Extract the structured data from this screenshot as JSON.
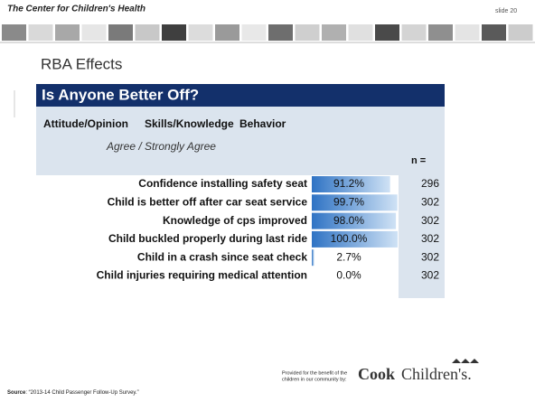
{
  "header": {
    "org": "The Center for Children's Health",
    "slide": "slide 20"
  },
  "title": "RBA Effects",
  "panel": {
    "heading": "Is Anyone Better Off?",
    "tabs": [
      "Attitude/Opinion",
      "Skills/Knowledge",
      "Behavior"
    ],
    "subheading": "Agree / Strongly Agree",
    "n_header": "n ="
  },
  "table": {
    "xlim": [
      0,
      100
    ],
    "rows": [
      {
        "label": "Confidence installing safety seat",
        "value": 91.2,
        "value_label": "91.2%",
        "n": 296
      },
      {
        "label": "Child is better off after car seat service",
        "value": 99.7,
        "value_label": "99.7%",
        "n": 302
      },
      {
        "label": "Knowledge of cps improved",
        "value": 98.0,
        "value_label": "98.0%",
        "n": 302
      },
      {
        "label": "Child buckled properly during last ride",
        "value": 100.0,
        "value_label": "100.0%",
        "n": 302
      },
      {
        "label": "Child in a crash since seat check",
        "value": 2.7,
        "value_label": "2.7%",
        "n": 302
      },
      {
        "label": "Child injuries requiring medical attention",
        "value": 0.0,
        "value_label": "0.0%",
        "n": 302
      }
    ]
  },
  "footer": {
    "source_label": "Source",
    "source": ": “2013-14 Child Passenger Follow-Up Survey.”",
    "provided": [
      "Provided for the benefit of the",
      "children in our community by:"
    ],
    "logo_cook": "Cook",
    "logo_childrens": "Children's."
  }
}
